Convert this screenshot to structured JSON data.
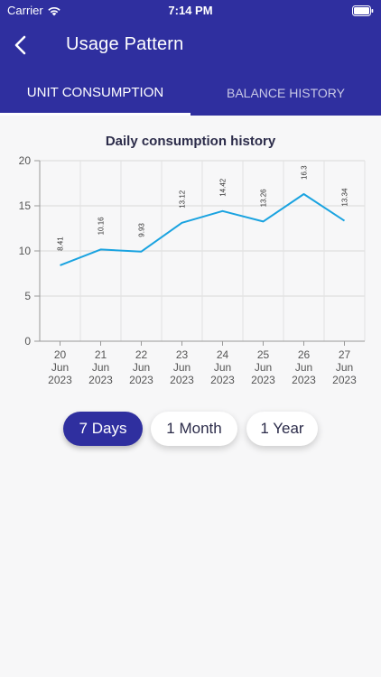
{
  "status_bar": {
    "carrier": "Carrier",
    "time": "7:14 PM"
  },
  "nav": {
    "title": "Usage Pattern"
  },
  "tabs": [
    {
      "label": "UNIT CONSUMPTION",
      "active": true
    },
    {
      "label": "BALANCE HISTORY",
      "active": false
    }
  ],
  "range_buttons": [
    {
      "label": "7 Days",
      "active": true
    },
    {
      "label": "1 Month",
      "active": false
    },
    {
      "label": "1 Year",
      "active": false
    }
  ],
  "colors": {
    "primary": "#2f2f9f",
    "line": "#1aa3e0",
    "background": "#f7f7f8"
  },
  "chart_data": {
    "type": "line",
    "title": "Daily consumption history",
    "xlabel": "",
    "ylabel": "",
    "ylim": [
      0,
      20
    ],
    "yticks": [
      0,
      5,
      10,
      15,
      20
    ],
    "categories": [
      [
        "20",
        "Jun",
        "2023"
      ],
      [
        "21",
        "Jun",
        "2023"
      ],
      [
        "22",
        "Jun",
        "2023"
      ],
      [
        "23",
        "Jun",
        "2023"
      ],
      [
        "24",
        "Jun",
        "2023"
      ],
      [
        "25",
        "Jun",
        "2023"
      ],
      [
        "26",
        "Jun",
        "2023"
      ],
      [
        "27",
        "Jun",
        "2023"
      ]
    ],
    "values": [
      8.41,
      10.16,
      9.93,
      13.12,
      14.42,
      13.26,
      16.3,
      13.34
    ],
    "value_labels": [
      "8.41",
      "10.16",
      "9.93",
      "13.12",
      "14.42",
      "13.26",
      "16.3",
      "13.34"
    ],
    "grid": true
  }
}
